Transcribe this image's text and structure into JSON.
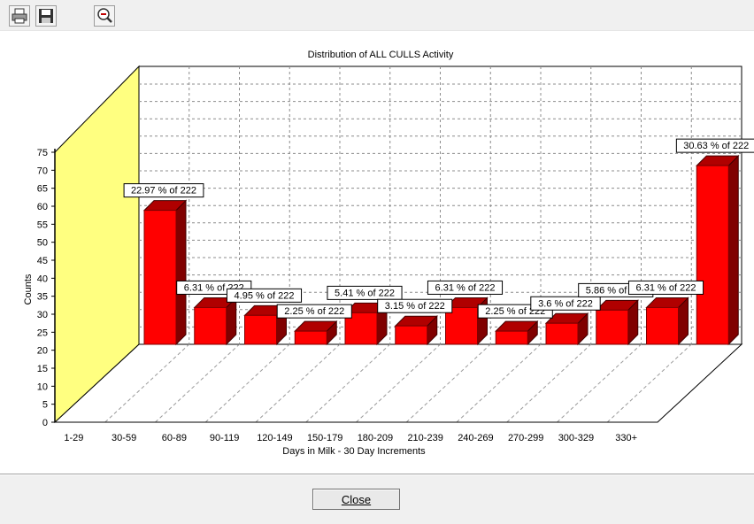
{
  "window": {
    "close_label": "Close"
  },
  "toolbar": {
    "print_icon": "printer-icon",
    "save_icon": "floppy-disk-icon",
    "zoom_icon": "zoom-out-icon"
  },
  "chart_data": {
    "type": "bar",
    "title": "Distribution of ALL CULLS Activity",
    "xlabel": "Days in Milk - 30 Day Increments",
    "ylabel": "Counts",
    "ylim": [
      0,
      75
    ],
    "yticks": [
      "0",
      "5",
      "10",
      "15",
      "20",
      "25",
      "30",
      "35",
      "40",
      "45",
      "50",
      "55",
      "60",
      "65",
      "70",
      "75"
    ],
    "categories": [
      "1-29",
      "30-59",
      "60-89",
      "90-119",
      "120-149",
      "150-179",
      "180-209",
      "210-239",
      "240-269",
      "270-299",
      "300-329",
      "330+"
    ],
    "values": [
      51,
      14,
      11,
      5,
      12,
      7,
      14,
      5,
      8,
      13,
      14,
      68
    ],
    "data_labels": [
      "22.97 % of 222",
      "6.31 % of 222",
      "4.95 % of 222",
      "2.25 % of 222",
      "5.41 % of 222",
      "3.15 % of 222",
      "6.31 % of 222",
      "2.25 % of 222",
      "3.6 % of 222",
      "5.86 % of 222",
      "6.31 % of 222",
      "30.63 % of 222"
    ],
    "grid": true,
    "bar_color": "#ff0000",
    "wall_color": "#ffff80"
  }
}
